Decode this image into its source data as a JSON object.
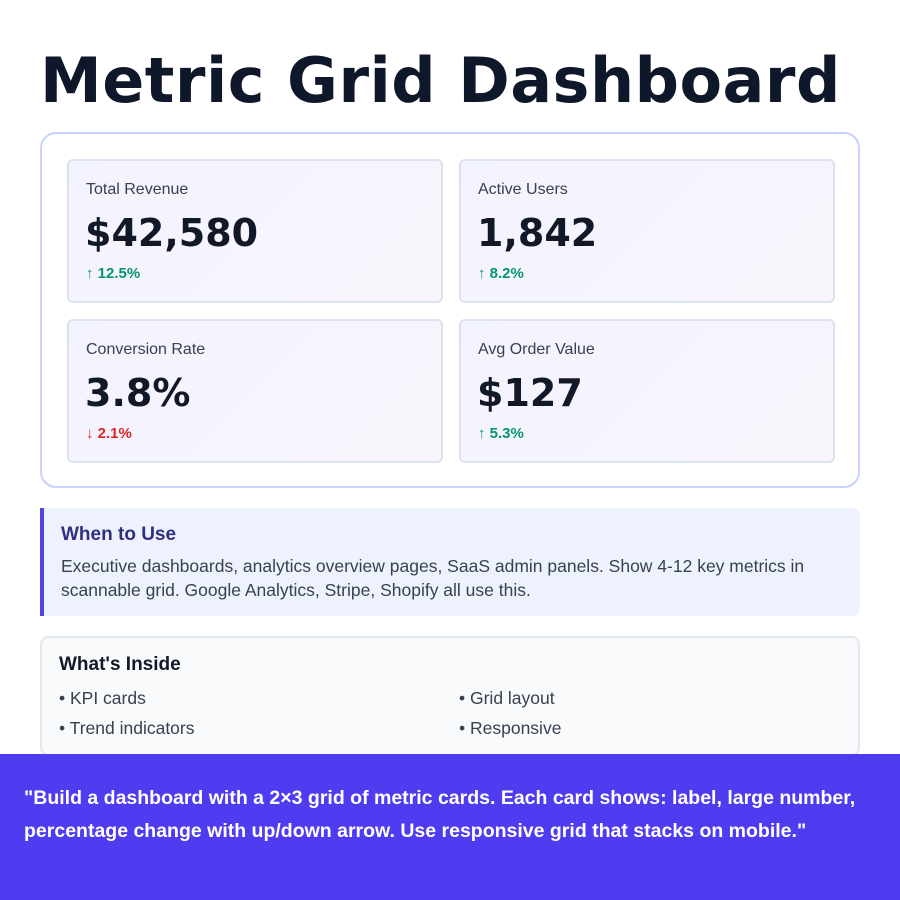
{
  "page": {
    "title": "Metric Grid Dashboard"
  },
  "metrics": [
    {
      "label": "Total Revenue",
      "value": "$42,580",
      "trend": "↑ 12.5%",
      "direction": "up"
    },
    {
      "label": "Active Users",
      "value": "1,842",
      "trend": "↑ 8.2%",
      "direction": "up"
    },
    {
      "label": "Conversion Rate",
      "value": "3.8%",
      "trend": "↓ 2.1%",
      "direction": "down"
    },
    {
      "label": "Avg Order Value",
      "value": "$127",
      "trend": "↑ 5.3%",
      "direction": "up"
    }
  ],
  "when_to_use": {
    "title": "When to Use",
    "body": "Executive dashboards, analytics overview pages, SaaS admin panels. Show 4-12 key metrics in scannable grid. Google Analytics, Stripe, Shopify all use this."
  },
  "whats_inside": {
    "title": "What's Inside",
    "items": [
      "• KPI cards",
      "• Grid layout",
      "• Trend indicators",
      "• Responsive"
    ]
  },
  "prompt": {
    "text": "\"Build a dashboard with a 2×3 grid of metric cards. Each card shows: label, large number, percentage change with up/down arrow. Use responsive grid that stacks on mobile.\""
  },
  "colors": {
    "accent": "#4f46e5",
    "up": "#059669",
    "down": "#dc2626",
    "prompt_bg": "#4f3cf0"
  }
}
